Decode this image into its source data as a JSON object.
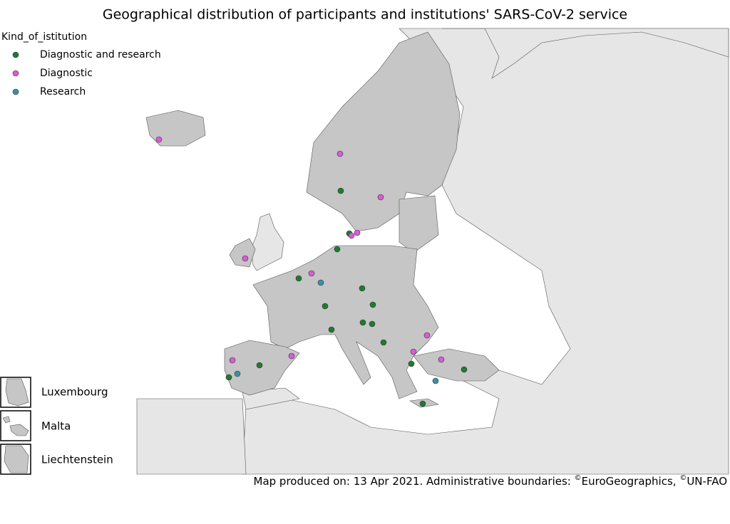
{
  "title": "Geographical distribution of participants and institutions' SARS-CoV-2 service",
  "legend": {
    "title": "Kind_of_istitution",
    "items": [
      {
        "name": "Diagnostic and research",
        "color": "#1f7a33"
      },
      {
        "name": "Diagnostic",
        "color": "#da5bd6"
      },
      {
        "name": "Research",
        "color": "#3d8fa3"
      }
    ]
  },
  "insets": [
    "Luxembourg",
    "Malta",
    "Liechtenstein"
  ],
  "footer": [
    "Map produced on: 13 Apr 2021. Administrative boundaries: ",
    "©",
    "EuroGeographics, ",
    "©",
    "UN-FAO"
  ]
}
